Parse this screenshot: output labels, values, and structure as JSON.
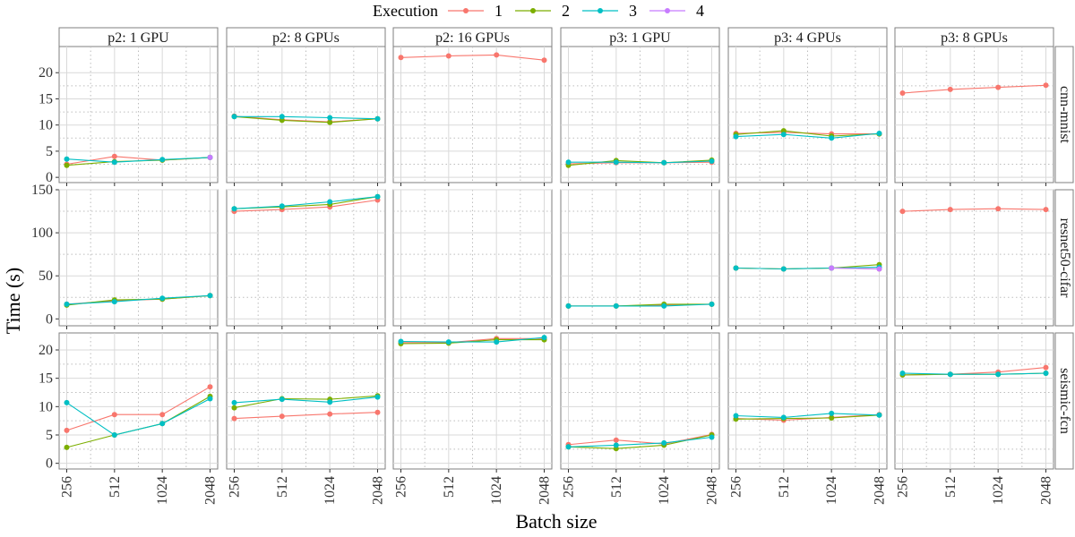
{
  "chart_data": {
    "type": "line",
    "xlabel": "Batch size",
    "ylabel": "Time (s)",
    "x": [
      256,
      512,
      1024,
      2048
    ],
    "x_tick_labels": [
      "256",
      "512",
      "1024",
      "2048"
    ],
    "legend": {
      "title": "Execution",
      "placement": "top",
      "entries": [
        {
          "label": "1",
          "color": "#F8766D"
        },
        {
          "label": "2",
          "color": "#7CAE00"
        },
        {
          "label": "3",
          "color": "#00BFC4"
        },
        {
          "label": "4",
          "color": "#C77CFF"
        }
      ]
    },
    "columns": [
      "p2: 1 GPU",
      "p2: 8 GPUs",
      "p2: 16 GPUs",
      "p3: 1 GPU",
      "p3: 4 GPUs",
      "p3: 8 GPUs"
    ],
    "rows": [
      {
        "label": "cnn-mnist",
        "ylim": [
          -1,
          25
        ],
        "ticks": [
          0,
          5,
          10,
          15,
          20
        ]
      },
      {
        "label": "resnet50-cifar",
        "ylim": [
          -8,
          150
        ],
        "ticks": [
          0,
          50,
          100,
          150
        ]
      },
      {
        "label": "seismic-fcn",
        "ylim": [
          -1,
          23
        ],
        "ticks": [
          0,
          5,
          10,
          15,
          20
        ]
      }
    ],
    "grid": true,
    "panels": [
      [
        {
          "series": [
            {
              "exec": "1",
              "values": [
                2.5,
                4.0,
                3.3,
                3.8
              ]
            },
            {
              "exec": "2",
              "values": [
                2.3,
                3.0,
                3.3,
                3.8
              ]
            },
            {
              "exec": "3",
              "values": [
                3.5,
                2.9,
                3.4,
                3.8
              ]
            },
            {
              "exec": "4",
              "values": [
                null,
                null,
                null,
                3.8
              ]
            }
          ]
        },
        {
          "series": [
            {
              "exec": "1",
              "values": [
                11.7,
                11.0,
                10.6,
                11.2
              ]
            },
            {
              "exec": "2",
              "values": [
                11.6,
                10.9,
                10.5,
                11.2
              ]
            },
            {
              "exec": "3",
              "values": [
                11.6,
                11.6,
                11.4,
                11.2
              ]
            }
          ]
        },
        {
          "series": [
            {
              "exec": "1",
              "values": [
                22.9,
                23.2,
                23.4,
                22.4
              ]
            }
          ]
        },
        {
          "series": [
            {
              "exec": "1",
              "values": [
                2.6,
                2.8,
                2.8,
                2.9
              ]
            },
            {
              "exec": "2",
              "values": [
                2.3,
                3.2,
                2.8,
                3.3
              ]
            },
            {
              "exec": "3",
              "values": [
                2.9,
                2.9,
                2.8,
                3.1
              ]
            }
          ]
        },
        {
          "series": [
            {
              "exec": "1",
              "values": [
                8.4,
                8.6,
                8.3,
                8.3
              ]
            },
            {
              "exec": "2",
              "values": [
                8.2,
                8.9,
                7.9,
                8.3
              ]
            },
            {
              "exec": "3",
              "values": [
                7.8,
                8.2,
                7.5,
                8.4
              ]
            }
          ]
        },
        {
          "series": [
            {
              "exec": "1",
              "values": [
                16.1,
                16.8,
                17.2,
                17.6
              ]
            }
          ]
        }
      ],
      [
        {
          "series": [
            {
              "exec": "1",
              "values": [
                17,
                21,
                23,
                27
              ]
            },
            {
              "exec": "2",
              "values": [
                16,
                22,
                23,
                27
              ]
            },
            {
              "exec": "3",
              "values": [
                17,
                20,
                24,
                27
              ]
            }
          ]
        },
        {
          "series": [
            {
              "exec": "1",
              "values": [
                125,
                127,
                130,
                138
              ]
            },
            {
              "exec": "2",
              "values": [
                128,
                130,
                133,
                142
              ]
            },
            {
              "exec": "3",
              "values": [
                128,
                131,
                136,
                142
              ]
            }
          ]
        },
        {
          "series": []
        },
        {
          "series": [
            {
              "exec": "1",
              "values": [
                15,
                15,
                16,
                17
              ]
            },
            {
              "exec": "2",
              "values": [
                15,
                15,
                17,
                17
              ]
            },
            {
              "exec": "3",
              "values": [
                15,
                15,
                15,
                17
              ]
            }
          ]
        },
        {
          "series": [
            {
              "exec": "1",
              "values": [
                59,
                58,
                59,
                58
              ]
            },
            {
              "exec": "2",
              "values": [
                59,
                58,
                59,
                63
              ]
            },
            {
              "exec": "3",
              "values": [
                59,
                58,
                59,
                60
              ]
            },
            {
              "exec": "4",
              "values": [
                null,
                null,
                59,
                58
              ]
            }
          ]
        },
        {
          "series": [
            {
              "exec": "1",
              "values": [
                125,
                127,
                128,
                127
              ]
            }
          ]
        }
      ],
      [
        {
          "series": [
            {
              "exec": "1",
              "values": [
                5.8,
                8.6,
                8.6,
                13.5
              ]
            },
            {
              "exec": "2",
              "values": [
                2.8,
                5.0,
                7.0,
                11.8
              ]
            },
            {
              "exec": "3",
              "values": [
                10.7,
                5.0,
                7.0,
                11.4
              ]
            }
          ]
        },
        {
          "series": [
            {
              "exec": "1",
              "values": [
                7.9,
                8.3,
                8.7,
                9.0
              ]
            },
            {
              "exec": "2",
              "values": [
                9.8,
                11.4,
                11.3,
                11.9
              ]
            },
            {
              "exec": "3",
              "values": [
                10.7,
                11.3,
                10.8,
                11.7
              ]
            }
          ]
        },
        {
          "series": [
            {
              "exec": "1",
              "values": [
                21.3,
                21.3,
                22.0,
                22.0
              ]
            },
            {
              "exec": "2",
              "values": [
                21.1,
                21.2,
                21.8,
                21.8
              ]
            },
            {
              "exec": "3",
              "values": [
                21.5,
                21.4,
                21.4,
                22.2
              ]
            }
          ]
        },
        {
          "series": [
            {
              "exec": "1",
              "values": [
                3.3,
                4.1,
                3.4,
                5.1
              ]
            },
            {
              "exec": "2",
              "values": [
                2.9,
                2.6,
                3.2,
                5.0
              ]
            },
            {
              "exec": "3",
              "values": [
                2.9,
                3.2,
                3.6,
                4.6
              ]
            }
          ]
        },
        {
          "series": [
            {
              "exec": "1",
              "values": [
                7.9,
                7.6,
                8.1,
                8.6
              ]
            },
            {
              "exec": "2",
              "values": [
                7.8,
                7.9,
                8.0,
                8.5
              ]
            },
            {
              "exec": "3",
              "values": [
                8.4,
                8.1,
                8.8,
                8.5
              ]
            }
          ]
        },
        {
          "series": [
            {
              "exec": "1",
              "values": [
                15.6,
                15.7,
                16.1,
                16.9
              ]
            },
            {
              "exec": "2",
              "values": [
                15.6,
                15.7,
                15.7,
                15.9
              ]
            },
            {
              "exec": "3",
              "values": [
                15.9,
                15.7,
                15.7,
                15.9
              ]
            }
          ]
        }
      ]
    ]
  }
}
